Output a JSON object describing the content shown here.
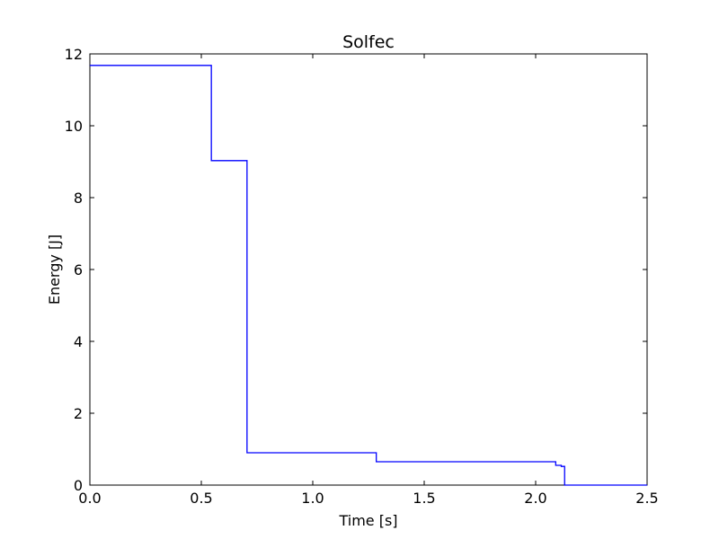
{
  "chart_data": {
    "type": "line",
    "title": "Solfec",
    "xlabel": "Time [s]",
    "ylabel": "Energy [J]",
    "xlim": [
      0,
      2.5
    ],
    "ylim": [
      0,
      12
    ],
    "xticks": [
      "0.0",
      "0.5",
      "1.0",
      "1.5",
      "2.0",
      "2.5"
    ],
    "yticks": [
      "0",
      "2",
      "4",
      "6",
      "8",
      "10",
      "12"
    ],
    "xtick_values": [
      0,
      0.5,
      1.0,
      1.5,
      2.0,
      2.5
    ],
    "ytick_values": [
      0,
      2,
      4,
      6,
      8,
      10,
      12
    ],
    "grid": false,
    "legend": "none",
    "series": [
      {
        "color": "#0000ff",
        "x": [
          0.0,
          0.545,
          0.545,
          0.705,
          0.705,
          1.285,
          1.285,
          2.09,
          2.09,
          2.115,
          2.115,
          2.13,
          2.13,
          2.5
        ],
        "y": [
          11.68,
          11.68,
          9.03,
          9.03,
          0.9,
          0.9,
          0.65,
          0.65,
          0.55,
          0.55,
          0.52,
          0.52,
          0.0,
          0.0
        ]
      }
    ]
  }
}
